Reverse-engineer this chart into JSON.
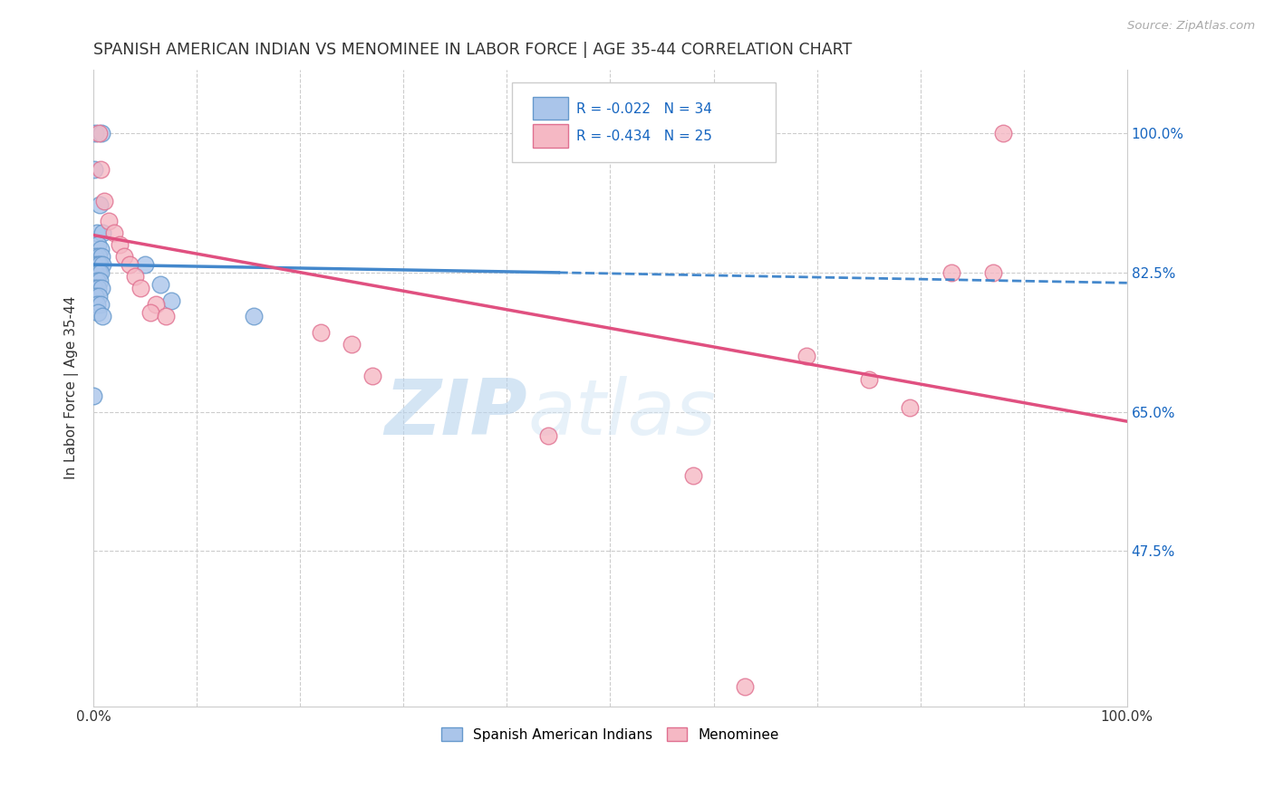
{
  "title": "SPANISH AMERICAN INDIAN VS MENOMINEE IN LABOR FORCE | AGE 35-44 CORRELATION CHART",
  "source": "Source: ZipAtlas.com",
  "ylabel": "In Labor Force | Age 35-44",
  "xlim": [
    0.0,
    1.0
  ],
  "ylim": [
    0.28,
    1.08
  ],
  "ytick_positions": [
    0.475,
    0.65,
    0.825,
    1.0
  ],
  "ytick_labels": [
    "47.5%",
    "65.0%",
    "82.5%",
    "100.0%"
  ],
  "blue_R": "-0.022",
  "blue_N": "34",
  "pink_R": "-0.434",
  "pink_N": "25",
  "blue_color": "#aac5ea",
  "blue_edge": "#6699cc",
  "pink_color": "#f5b8c4",
  "pink_edge": "#e07090",
  "blue_scatter": [
    [
      0.002,
      1.0
    ],
    [
      0.008,
      1.0
    ],
    [
      0.001,
      0.955
    ],
    [
      0.006,
      0.91
    ],
    [
      0.003,
      0.875
    ],
    [
      0.009,
      0.875
    ],
    [
      0.004,
      0.86
    ],
    [
      0.007,
      0.855
    ],
    [
      0.002,
      0.845
    ],
    [
      0.005,
      0.845
    ],
    [
      0.008,
      0.845
    ],
    [
      0.001,
      0.835
    ],
    [
      0.004,
      0.835
    ],
    [
      0.006,
      0.835
    ],
    [
      0.009,
      0.835
    ],
    [
      0.002,
      0.825
    ],
    [
      0.005,
      0.825
    ],
    [
      0.007,
      0.825
    ],
    [
      0.003,
      0.815
    ],
    [
      0.006,
      0.815
    ],
    [
      0.001,
      0.805
    ],
    [
      0.004,
      0.805
    ],
    [
      0.008,
      0.805
    ],
    [
      0.002,
      0.795
    ],
    [
      0.005,
      0.795
    ],
    [
      0.003,
      0.785
    ],
    [
      0.007,
      0.785
    ],
    [
      0.004,
      0.775
    ],
    [
      0.009,
      0.77
    ],
    [
      0.05,
      0.835
    ],
    [
      0.065,
      0.81
    ],
    [
      0.075,
      0.79
    ],
    [
      0.155,
      0.77
    ],
    [
      0.0,
      0.67
    ]
  ],
  "pink_scatter": [
    [
      0.005,
      1.0
    ],
    [
      0.007,
      0.955
    ],
    [
      0.01,
      0.915
    ],
    [
      0.015,
      0.89
    ],
    [
      0.02,
      0.875
    ],
    [
      0.025,
      0.86
    ],
    [
      0.03,
      0.845
    ],
    [
      0.035,
      0.835
    ],
    [
      0.04,
      0.82
    ],
    [
      0.045,
      0.805
    ],
    [
      0.06,
      0.785
    ],
    [
      0.055,
      0.775
    ],
    [
      0.07,
      0.77
    ],
    [
      0.22,
      0.75
    ],
    [
      0.25,
      0.735
    ],
    [
      0.27,
      0.695
    ],
    [
      0.44,
      0.62
    ],
    [
      0.58,
      0.57
    ],
    [
      0.63,
      0.305
    ],
    [
      0.69,
      0.72
    ],
    [
      0.75,
      0.69
    ],
    [
      0.79,
      0.655
    ],
    [
      0.83,
      0.825
    ],
    [
      0.87,
      0.825
    ],
    [
      0.88,
      1.0
    ]
  ],
  "blue_line": [
    [
      0.0,
      0.835
    ],
    [
      0.45,
      0.825
    ]
  ],
  "blue_dash_line": [
    [
      0.45,
      0.825
    ],
    [
      1.0,
      0.812
    ]
  ],
  "pink_line": [
    [
      0.0,
      0.872
    ],
    [
      1.0,
      0.638
    ]
  ],
  "watermark_zip": "ZIP",
  "watermark_atlas": "atlas",
  "legend_color": "#1565c0",
  "axis_label_color": "#333333",
  "right_axis_color": "#1565c0",
  "grid_color": "#cccccc",
  "title_color": "#333333"
}
